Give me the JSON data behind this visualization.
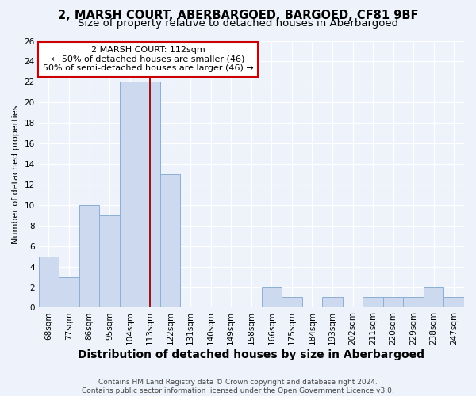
{
  "title1": "2, MARSH COURT, ABERBARGOED, BARGOED, CF81 9BF",
  "title2": "Size of property relative to detached houses in Aberbargoed",
  "xlabel": "Distribution of detached houses by size in Aberbargoed",
  "ylabel": "Number of detached properties",
  "categories": [
    "68sqm",
    "77sqm",
    "86sqm",
    "95sqm",
    "104sqm",
    "113sqm",
    "122sqm",
    "131sqm",
    "140sqm",
    "149sqm",
    "158sqm",
    "166sqm",
    "175sqm",
    "184sqm",
    "193sqm",
    "202sqm",
    "211sqm",
    "220sqm",
    "229sqm",
    "238sqm",
    "247sqm"
  ],
  "values": [
    5,
    3,
    10,
    9,
    22,
    22,
    13,
    0,
    0,
    0,
    0,
    2,
    1,
    0,
    1,
    0,
    1,
    1,
    1,
    2,
    1
  ],
  "bar_color": "#ccd9ee",
  "bar_edge_color": "#8bafd4",
  "ylim": [
    0,
    26
  ],
  "yticks": [
    0,
    2,
    4,
    6,
    8,
    10,
    12,
    14,
    16,
    18,
    20,
    22,
    24,
    26
  ],
  "vline_x_index": 5,
  "annotation_line1": "2 MARSH COURT: 112sqm",
  "annotation_line2": "← 50% of detached houses are smaller (46)",
  "annotation_line3": "50% of semi-detached houses are larger (46) →",
  "vline_color": "#990000",
  "annotation_box_facecolor": "#ffffff",
  "annotation_box_edgecolor": "#cc0000",
  "footer1": "Contains HM Land Registry data © Crown copyright and database right 2024.",
  "footer2": "Contains public sector information licensed under the Open Government Licence v3.0.",
  "background_color": "#edf2fb",
  "grid_color": "#ffffff",
  "title1_fontsize": 10.5,
  "title2_fontsize": 9.5,
  "xlabel_fontsize": 10,
  "ylabel_fontsize": 8,
  "tick_fontsize": 7.5,
  "annot_fontsize": 8,
  "footer_fontsize": 6.5
}
